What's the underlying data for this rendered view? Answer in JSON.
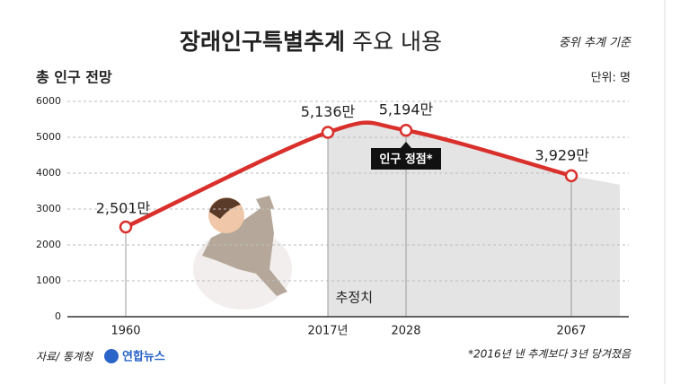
{
  "chart_data": {
    "type": "line",
    "title": "장래인구특별추계",
    "title_rest": "주요 내용",
    "note_top": "중위 추계 기준",
    "y_label": "총 인구 전망",
    "unit": "단위: 명",
    "categories": [
      "1960",
      "2017년",
      "2028",
      "2067"
    ],
    "values": [
      2501,
      5136,
      5194,
      3929
    ],
    "value_labels": [
      "2,501만",
      "5,136만",
      "5,194만",
      "3,929만"
    ],
    "color": "#d9302c",
    "ylim": [
      0,
      6000
    ],
    "yticks": [
      0,
      1000,
      2000,
      3000,
      4000,
      5000,
      6000
    ],
    "grid": true,
    "annotations": [
      "인구 정점*",
      "추정치"
    ],
    "source": "자료/ 통계청",
    "logo": "연합뉴스",
    "footnote": "*2016년 낸 추계보다 3년 당겨졌음"
  }
}
